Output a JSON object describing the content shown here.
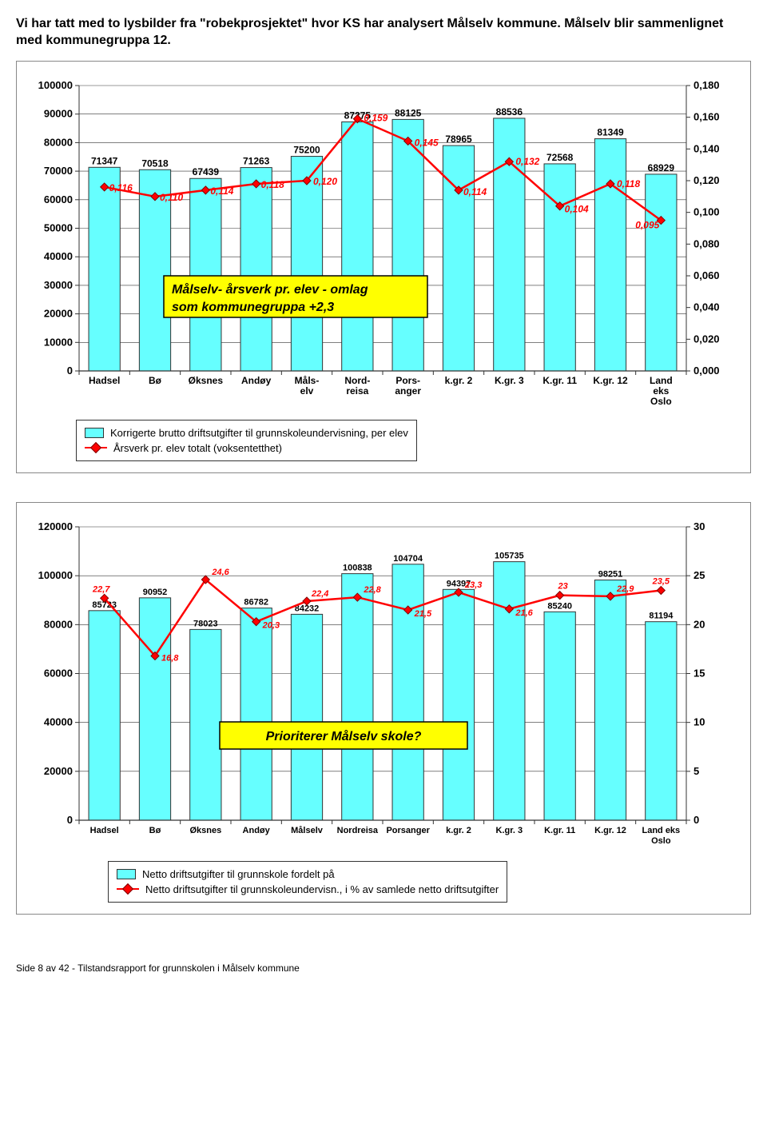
{
  "intro_text": "Vi har tatt med to lysbilder fra \"robekprosjektet\" hvor KS har analysert Målselv kommune. Målselv blir sammenlignet med kommunegruppa 12.",
  "footer_text": "Side 8 av 42 - Tilstandsrapport for grunnskolen i Målselv kommune",
  "chart1": {
    "type": "bar+line",
    "categories": [
      "Hadsel",
      "Bø",
      "Øksnes",
      "Andøy",
      "Måls-\nelv",
      "Nord-\nreisa",
      "Pors-\nanger",
      "k.gr. 2",
      "K.gr. 3",
      "K.gr. 11",
      "K.gr. 12",
      "Land\neks\nOslo"
    ],
    "bar_values": [
      71347,
      70518,
      67439,
      71263,
      75200,
      87275,
      88125,
      78965,
      88536,
      72568,
      81349,
      68929
    ],
    "bar_labels": [
      "71347",
      "70518",
      "67439",
      "71263",
      "75200",
      "87275",
      "88125",
      "78965",
      "88536",
      "72568",
      "81349",
      "68929"
    ],
    "line_values": [
      0.116,
      0.11,
      0.114,
      0.118,
      0.12,
      0.159,
      0.145,
      0.114,
      0.132,
      0.104,
      0.118,
      0.095
    ],
    "line_labels": [
      "0,116",
      "0,110",
      "0,114",
      "0,118",
      "0,120",
      "0,159",
      "0,145",
      "0,114",
      "0,132",
      "0,104",
      "0,118",
      "0,095"
    ],
    "y1_ticks": [
      0,
      10000,
      20000,
      30000,
      40000,
      50000,
      60000,
      70000,
      80000,
      90000,
      100000
    ],
    "y2_ticks": [
      "0,000",
      "0,020",
      "0,040",
      "0,060",
      "0,080",
      "0,100",
      "0,120",
      "0,140",
      "0,160",
      "0,180"
    ],
    "y1_max": 100000,
    "y2_max": 0.18,
    "bar_color": "#66ffff",
    "bar_border": "#333333",
    "line_color": "#ff0000",
    "line_border": "#800000",
    "annotation_text": "Målselv-  årsverk pr. elev - omlag som kommunegruppa +2,3",
    "annotation_bg": "#ffff00",
    "annotation_border": "#000000",
    "legend_bar": "Korrigerte brutto driftsutgifter til grunnskoleundervisning, per elev",
    "legend_line": "Årsverk pr. elev totalt (voksentetthet)",
    "label_fontsize": 12,
    "tick_fontsize": 13,
    "annotation_fontsize": 16
  },
  "chart2": {
    "type": "bar+line",
    "categories": [
      "Hadsel",
      "Bø",
      "Øksnes",
      "Andøy",
      "Målselv",
      "Nordreisa",
      "Porsanger",
      "k.gr. 2",
      "K.gr. 3",
      "K.gr. 11",
      "K.gr. 12",
      "Land eks\nOslo"
    ],
    "bar_values": [
      85723,
      90952,
      78023,
      86782,
      84232,
      100838,
      104704,
      94397,
      105735,
      85240,
      98251,
      81194
    ],
    "bar_labels": [
      "85723",
      "90952",
      "78023",
      "86782",
      "84232",
      "100838",
      "104704",
      "94397",
      "105735",
      "85240",
      "98251",
      "81194"
    ],
    "line_values": [
      22.7,
      16.8,
      24.6,
      20.3,
      22.4,
      22.8,
      21.5,
      23.3,
      21.6,
      23,
      22.9,
      23.5
    ],
    "line_labels": [
      "22,7",
      "16,8",
      "24,6",
      "20,3",
      "22,4",
      "22,8",
      "21,5",
      "23,3",
      "21,6",
      "23",
      "22,9",
      "23,5"
    ],
    "y1_ticks": [
      0,
      20000,
      40000,
      60000,
      80000,
      100000,
      120000
    ],
    "y2_ticks": [
      0,
      5,
      10,
      15,
      20,
      25,
      30
    ],
    "y1_max": 120000,
    "y2_max": 30,
    "bar_color": "#66ffff",
    "bar_border": "#333333",
    "line_color": "#ff0000",
    "line_border": "#800000",
    "annotation_text": "Prioriterer Målselv skole?",
    "annotation_bg": "#ffff00",
    "annotation_border": "#000000",
    "legend_bar": "Netto driftsutgifter til grunnskole fordelt på",
    "legend_line": "Netto driftsutgifter til grunnskoleundervisn., i % av samlede netto driftsutgifter",
    "label_fontsize": 11,
    "tick_fontsize": 13,
    "annotation_fontsize": 16
  }
}
